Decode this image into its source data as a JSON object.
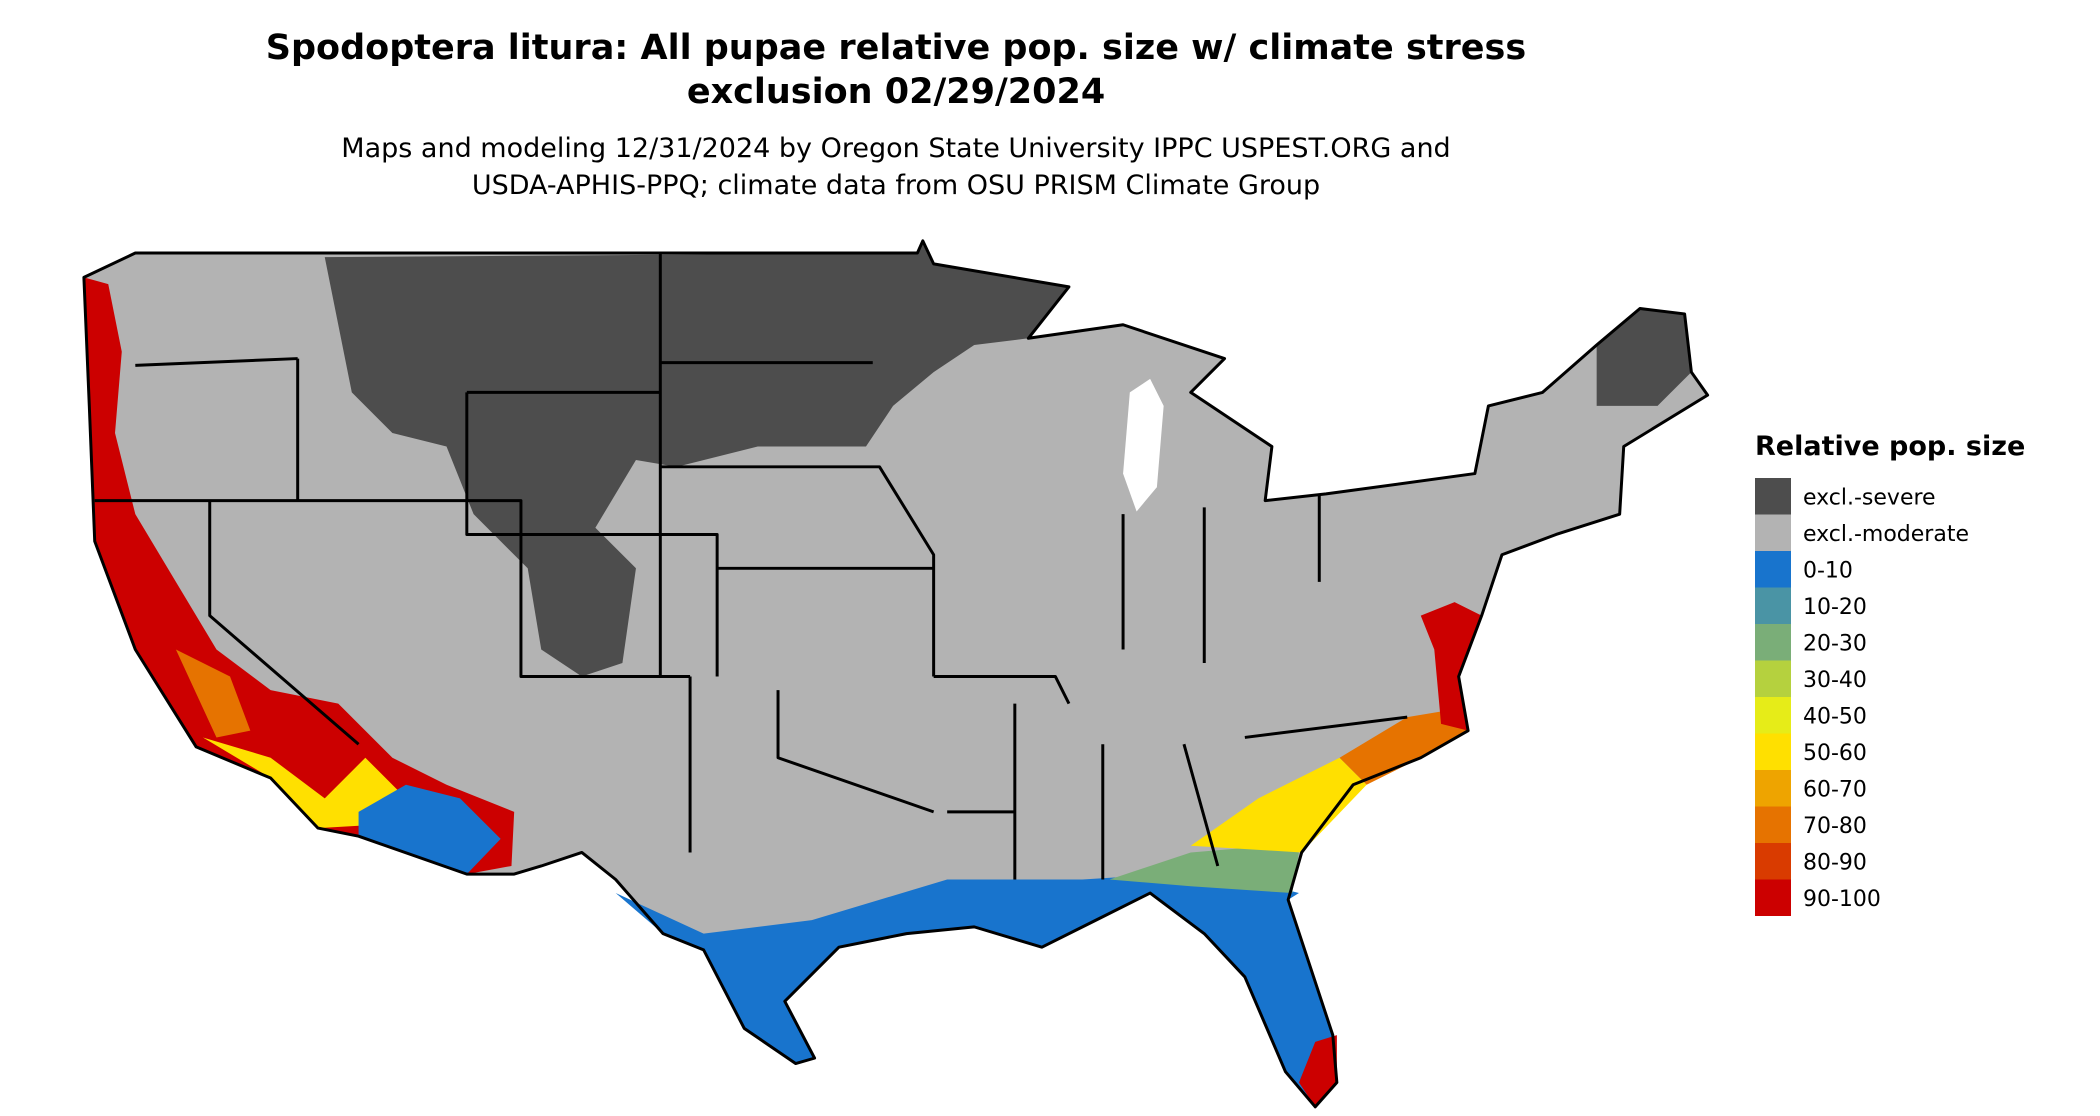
{
  "title": [
    "Spodoptera litura: All pupae relative pop. size w/ climate stress",
    "exclusion 02/29/2024"
  ],
  "subtitle": [
    "Maps and modeling 12/31/2024 by Oregon State University IPPC USPEST.ORG and",
    "USDA-APHIS-PPQ; climate data from OSU PRISM Climate Group"
  ],
  "legend": {
    "title": "Relative pop. size",
    "items": [
      {
        "label": "excl.-severe",
        "color": "#4d4d4d"
      },
      {
        "label": "excl.-moderate",
        "color": "#b3b3b3"
      },
      {
        "label": "0-10",
        "color": "#1874cd"
      },
      {
        "label": "10-20",
        "color": "#4a94a5"
      },
      {
        "label": "20-30",
        "color": "#7aae78"
      },
      {
        "label": "30-40",
        "color": "#b5d13e"
      },
      {
        "label": "40-50",
        "color": "#e6ec18"
      },
      {
        "label": "50-60",
        "color": "#ffe000"
      },
      {
        "label": "60-70",
        "color": "#eea400"
      },
      {
        "label": "70-80",
        "color": "#e67300"
      },
      {
        "label": "80-90",
        "color": "#d93b00"
      },
      {
        "label": "90-100",
        "color": "#cc0000"
      }
    ]
  }
}
